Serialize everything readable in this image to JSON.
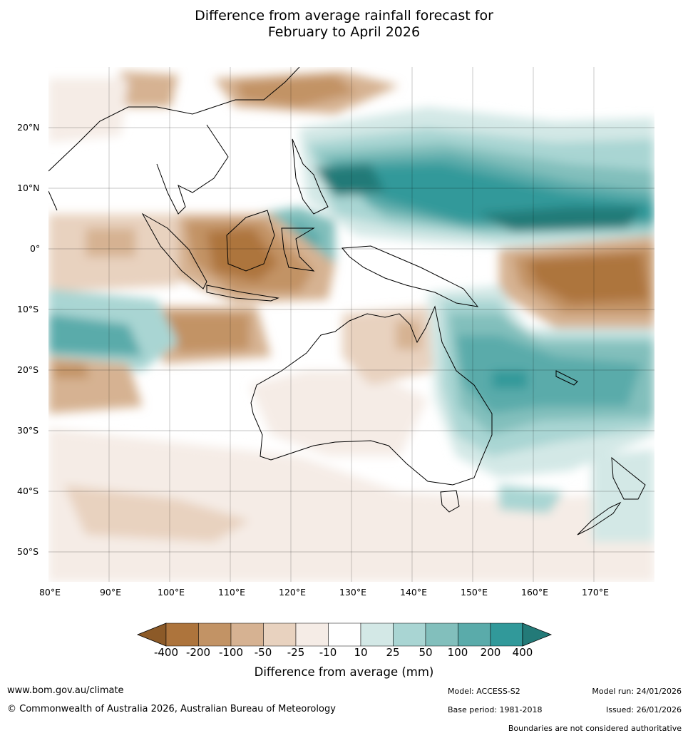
{
  "title_line1": "Difference from average rainfall forecast for",
  "title_line2": "February to April 2026",
  "axes": {
    "lat_labels": [
      "20°N",
      "10°N",
      "0°",
      "10°S",
      "20°S",
      "30°S",
      "40°S",
      "50°S"
    ],
    "lon_labels": [
      "80°E",
      "90°E",
      "100°E",
      "110°E",
      "120°E",
      "130°E",
      "140°E",
      "150°E",
      "160°E",
      "170°E"
    ]
  },
  "colorbar": {
    "title": "Difference from average (mm)",
    "labels": [
      "-400",
      "-200",
      "-100",
      "-50",
      "-25",
      "-10",
      "10",
      "25",
      "50",
      "100",
      "200",
      "400"
    ],
    "colors": {
      "lt_-400": "#8c5a28",
      "b1": "#ad743c",
      "b2": "#c29365",
      "b3": "#d6b292",
      "b4": "#e8d2bf",
      "b5": "#f5ece6",
      "b6": "#ffffff",
      "b7": "#d3e8e6",
      "b8": "#a9d5d3",
      "b9": "#82bfbc",
      "b10": "#5aabaa",
      "b11": "#31999a",
      "gt_400": "#237a78"
    }
  },
  "footer": {
    "website": "www.bom.gov.au/climate",
    "copyright": "© Commonwealth of Australia 2026, Australian Bureau of Meteorology",
    "model": "Model: ACCESS-S2",
    "base_period": "Base period: 1981-2018",
    "model_run": "Model run: 24/01/2026",
    "issued": "Issued: 26/01/2026",
    "disclaimer": "Boundaries are not considered authoritative"
  }
}
